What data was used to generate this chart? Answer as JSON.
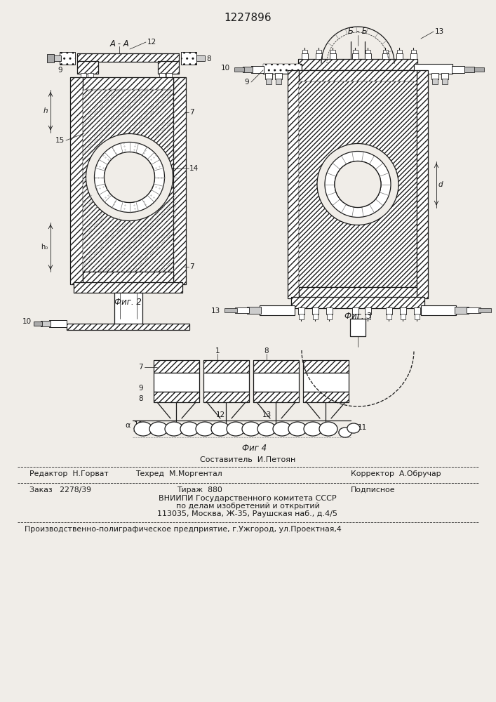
{
  "patent_number": "1227896",
  "bg": "#f0ede8",
  "lc": "#1a1a1a",
  "fig2_label": "А - А",
  "fig3_label": "Б - Б",
  "fig2_caption": "Фиг. 2",
  "fig3_caption": "Фиг. 3",
  "fig4_caption": "Фиг 4",
  "footer_composer": "Составитель  И.Петоян",
  "footer_editor": "Редактор  Н.Горват",
  "footer_techred": "Техред  М.Моргентал",
  "footer_corrector": "Корректор  А.Обручар",
  "footer_order": "Заказ   2278/39",
  "footer_tirazh": "Тираж  880",
  "footer_podp": "Подписное",
  "footer_vniip1": "ВНИИПИ Государственного комитета СССР",
  "footer_vniip2": "по делам изобретений и открытий",
  "footer_vniip3": "113035, Москва, Ж-35, Раушская наб., д.4/5",
  "footer_prod": "Производственно-полиграфическое предприятие, г.Ужгород, ул.Проектная,4"
}
